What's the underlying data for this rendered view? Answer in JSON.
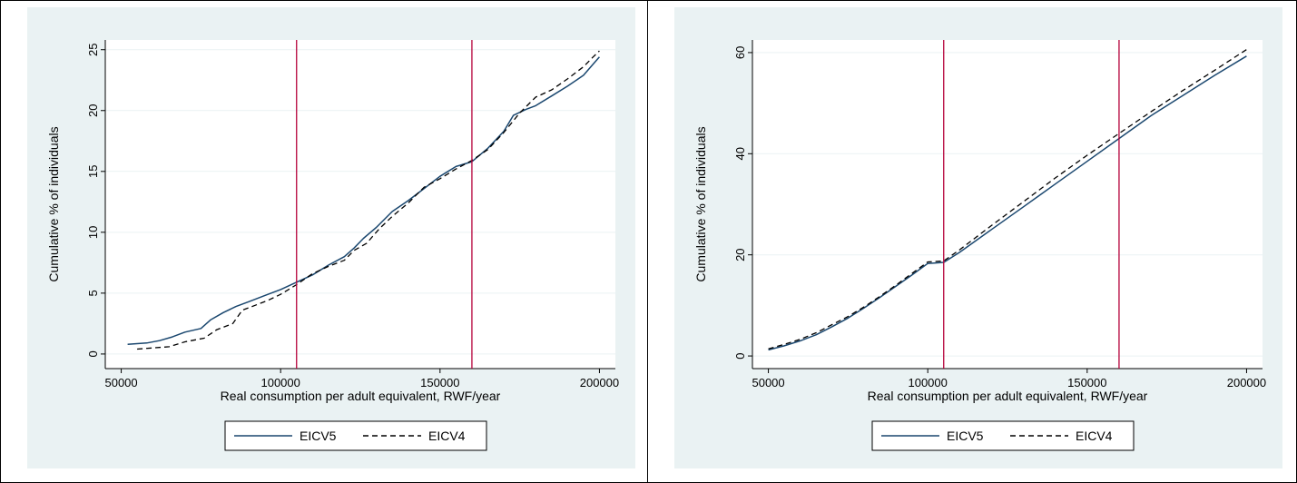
{
  "colors": {
    "background": "#eaf2f3",
    "grid": "#eaf2f3",
    "eicv5": "#1a476f",
    "eicv4": "#000000",
    "poverty_line": "#b5003a"
  },
  "chart_data": [
    {
      "type": "line",
      "xlabel": "Real consumption per adult equivalent, RWF/year",
      "ylabel": "Cumulative % of individuals",
      "xlim": [
        45000,
        205000
      ],
      "ylim": [
        -1.2,
        25.8
      ],
      "x_ticks": [
        50000,
        100000,
        150000,
        200000
      ],
      "y_ticks": [
        0,
        5,
        10,
        15,
        20,
        25
      ],
      "grid": true,
      "legend_position": "bottom",
      "vlines": [
        105000,
        160000
      ],
      "series": [
        {
          "name": "EICV5",
          "style": "solid",
          "x": [
            52000,
            58000,
            62000,
            66000,
            70000,
            75000,
            78000,
            82000,
            86000,
            90000,
            95000,
            100000,
            105000,
            110000,
            115000,
            120000,
            123000,
            126000,
            130000,
            135000,
            140000,
            145000,
            150000,
            155000,
            160000,
            165000,
            170000,
            173000,
            177000,
            180000,
            185000,
            190000,
            195000,
            198000,
            200000
          ],
          "y": [
            0.8,
            0.9,
            1.1,
            1.4,
            1.8,
            2.1,
            2.8,
            3.4,
            3.9,
            4.3,
            4.8,
            5.3,
            5.9,
            6.5,
            7.3,
            8.0,
            8.7,
            9.5,
            10.4,
            11.7,
            12.6,
            13.6,
            14.6,
            15.4,
            15.8,
            16.9,
            18.3,
            19.6,
            20.1,
            20.4,
            21.2,
            22.0,
            22.9,
            23.8,
            24.4
          ]
        },
        {
          "name": "EICV4",
          "style": "dashed",
          "x": [
            55000,
            60000,
            65000,
            70000,
            76000,
            80000,
            85000,
            88000,
            92000,
            96000,
            100000,
            105000,
            110000,
            115000,
            120000,
            123000,
            127000,
            131000,
            135000,
            140000,
            145000,
            150000,
            155000,
            160000,
            165000,
            170000,
            175000,
            180000,
            185000,
            190000,
            195000,
            198000,
            200000
          ],
          "y": [
            0.4,
            0.5,
            0.6,
            1.0,
            1.3,
            2.0,
            2.5,
            3.6,
            4.0,
            4.4,
            4.9,
            5.7,
            6.6,
            7.2,
            7.7,
            8.5,
            9.1,
            10.3,
            11.3,
            12.4,
            13.7,
            14.4,
            15.2,
            15.9,
            16.8,
            18.2,
            19.8,
            21.1,
            21.7,
            22.6,
            23.6,
            24.4,
            24.9
          ]
        }
      ]
    },
    {
      "type": "line",
      "xlabel": "Real consumption per adult equivalent, RWF/year",
      "ylabel": "Cumulative % of individuals",
      "xlim": [
        45000,
        205000
      ],
      "ylim": [
        -2.5,
        62.5
      ],
      "x_ticks": [
        50000,
        100000,
        150000,
        200000
      ],
      "y_ticks": [
        0,
        20,
        40,
        60
      ],
      "grid": true,
      "legend_position": "bottom",
      "vlines": [
        105000,
        160000
      ],
      "series": [
        {
          "name": "EICV5",
          "style": "solid",
          "x": [
            50000,
            55000,
            60000,
            65000,
            70000,
            75000,
            80000,
            85000,
            90000,
            95000,
            100000,
            105000,
            110000,
            120000,
            130000,
            140000,
            150000,
            160000,
            170000,
            180000,
            190000,
            200000
          ],
          "y": [
            1.2,
            2.0,
            3.0,
            4.2,
            5.8,
            7.5,
            9.5,
            11.6,
            13.8,
            16.0,
            18.3,
            18.5,
            20.5,
            25.0,
            29.5,
            34.0,
            38.5,
            43.0,
            47.5,
            51.5,
            55.5,
            59.3
          ]
        },
        {
          "name": "EICV4",
          "style": "dashed",
          "x": [
            50000,
            55000,
            60000,
            65000,
            70000,
            75000,
            80000,
            85000,
            90000,
            95000,
            100000,
            105000,
            110000,
            120000,
            130000,
            140000,
            150000,
            160000,
            170000,
            180000,
            190000,
            200000
          ],
          "y": [
            1.4,
            2.3,
            3.3,
            4.6,
            6.2,
            7.8,
            9.7,
            11.8,
            14.0,
            16.3,
            18.6,
            18.8,
            21.0,
            25.8,
            30.5,
            35.2,
            39.7,
            44.0,
            48.3,
            52.5,
            56.5,
            60.6
          ]
        }
      ]
    }
  ]
}
